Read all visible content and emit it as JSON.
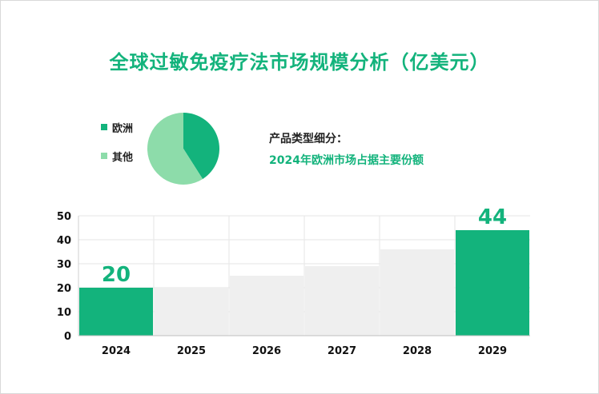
{
  "title": "全球过敏免疫疗法市场规模分析（亿美元）",
  "segment": {
    "heading": "产品类型细分：",
    "subheading": "2024年欧洲市场占据主要份额"
  },
  "colors": {
    "accent": "#13b37c",
    "other": "#8ddcaa",
    "bar_grey": "#efefef",
    "grid": "#d9d9d9"
  },
  "chart_data": [
    {
      "type": "pie",
      "legend": [
        "欧洲",
        "其他"
      ],
      "values": [
        41,
        59
      ],
      "colors": [
        "#13b37c",
        "#8ddcaa"
      ]
    },
    {
      "type": "bar",
      "categories": [
        "2024",
        "2025",
        "2026",
        "2027",
        "2028",
        "2029"
      ],
      "values": [
        20,
        20,
        25,
        29,
        36,
        44
      ],
      "highlight": [
        true,
        false,
        false,
        false,
        false,
        true
      ],
      "data_labels": [
        "20",
        "",
        "",
        "",
        "",
        "44"
      ],
      "yticks": [
        0,
        10,
        20,
        30,
        40,
        50
      ],
      "ylim": [
        0,
        50
      ],
      "title": "",
      "xlabel": "",
      "ylabel": ""
    }
  ]
}
